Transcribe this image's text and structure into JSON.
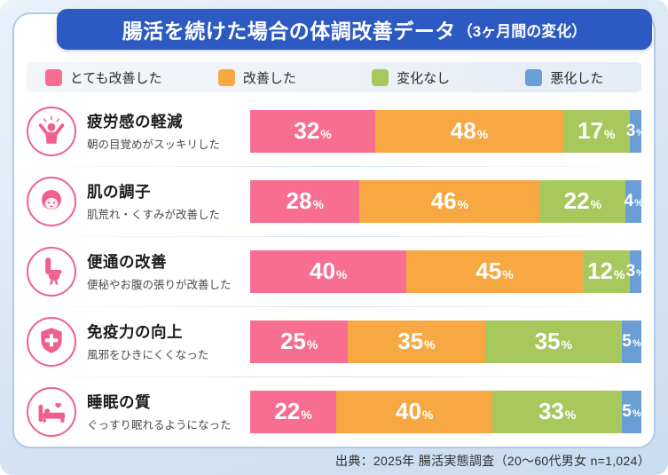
{
  "title": {
    "main": "腸活を続けた場合の体調改善データ",
    "sub": "（3ヶ月間の変化）"
  },
  "legend": [
    {
      "label": "とても改善した",
      "color": "#F76E91"
    },
    {
      "label": "改善した",
      "color": "#F7A843"
    },
    {
      "label": "変化なし",
      "color": "#A6C85D"
    },
    {
      "label": "悪化した",
      "color": "#6B9ED5"
    }
  ],
  "footer": "出典：2025年 腸活実態調査（20～60代男女 n=1,024）",
  "chart_data": {
    "type": "bar",
    "orientation": "horizontal-stacked",
    "unit": "%",
    "title": "腸活を続けた場合の体調改善データ（3ヶ月間の変化）",
    "xlim": [
      0,
      100
    ],
    "legend_position": "top",
    "series_names": [
      "とても改善した",
      "改善した",
      "変化なし",
      "悪化した"
    ],
    "series_colors": [
      "#F76E91",
      "#F7A843",
      "#A6C85D",
      "#6B9ED5"
    ],
    "rows": [
      {
        "icon": "cheer-person-icon",
        "category": "疲労感の軽減",
        "note": "朝の目覚めがスッキリした",
        "values": [
          32,
          48,
          17,
          3
        ]
      },
      {
        "icon": "woman-face-icon",
        "category": "肌の調子",
        "note": "肌荒れ・くすみが改善した",
        "values": [
          28,
          46,
          22,
          4
        ]
      },
      {
        "icon": "toilet-icon",
        "category": "便通の改善",
        "note": "便秘やお腹の張りが改善した",
        "values": [
          40,
          45,
          12,
          3
        ]
      },
      {
        "icon": "shield-cross-icon",
        "category": "免疫力の向上",
        "note": "風邪をひきにくくなった",
        "values": [
          25,
          35,
          35,
          5
        ]
      },
      {
        "icon": "sleeping-bed-icon",
        "category": "睡眠の質",
        "note": "ぐっすり眠れるようになった",
        "values": [
          22,
          40,
          33,
          5
        ]
      }
    ]
  }
}
